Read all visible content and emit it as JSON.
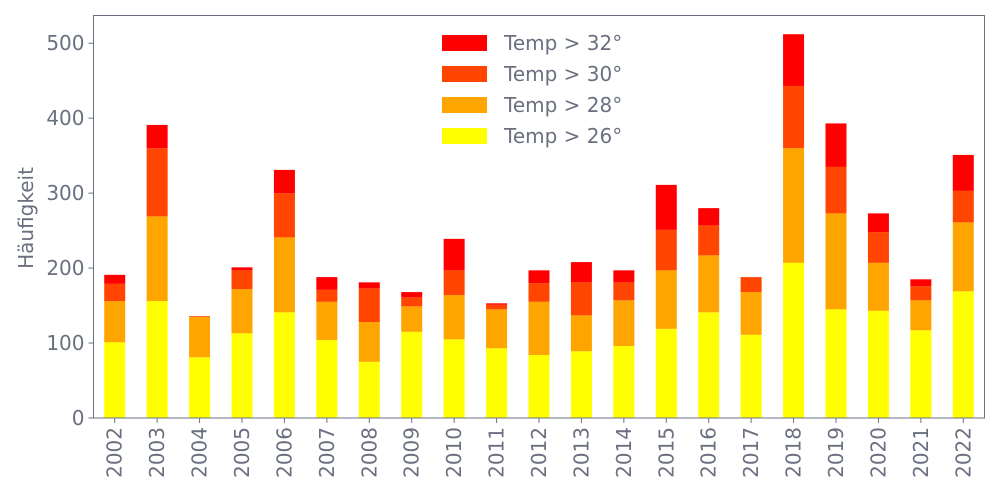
{
  "chart_data": {
    "type": "bar",
    "stacked": true,
    "title": "",
    "xlabel": "",
    "ylabel": "Häufigkeit",
    "ylim": [
      0,
      537
    ],
    "yticks": [
      0,
      100,
      200,
      300,
      400,
      500
    ],
    "grid": false,
    "legend_position": "top-center",
    "categories": [
      "2002",
      "2003",
      "2004",
      "2005",
      "2006",
      "2007",
      "2008",
      "2009",
      "2010",
      "2011",
      "2012",
      "2013",
      "2014",
      "2015",
      "2016",
      "2017",
      "2018",
      "2019",
      "2020",
      "2021",
      "2022"
    ],
    "series": [
      {
        "name": "Temp > 26°",
        "color": "#ffff00",
        "values": [
          101,
          156,
          81,
          113,
          141,
          104,
          75,
          115,
          105,
          93,
          84,
          89,
          96,
          119,
          141,
          111,
          207,
          145,
          143,
          117,
          169
        ]
      },
      {
        "name": "Temp > 28°",
        "color": "#ffa500",
        "values": [
          55,
          113,
          54,
          59,
          100,
          51,
          53,
          34,
          59,
          52,
          71,
          48,
          61,
          78,
          76,
          57,
          153,
          128,
          64,
          40,
          92
        ]
      },
      {
        "name": "Temp > 30°",
        "color": "#ff4500",
        "values": [
          23,
          91,
          1,
          25,
          59,
          16,
          45,
          12,
          33,
          6,
          25,
          44,
          24,
          54,
          40,
          20,
          83,
          62,
          41,
          19,
          42
        ]
      },
      {
        "name": "Temp > 32°",
        "color": "#ff0000",
        "values": [
          12,
          31,
          0,
          4,
          31,
          17,
          8,
          7,
          42,
          2,
          17,
          27,
          16,
          60,
          23,
          0,
          69,
          58,
          25,
          9,
          48
        ]
      }
    ]
  }
}
